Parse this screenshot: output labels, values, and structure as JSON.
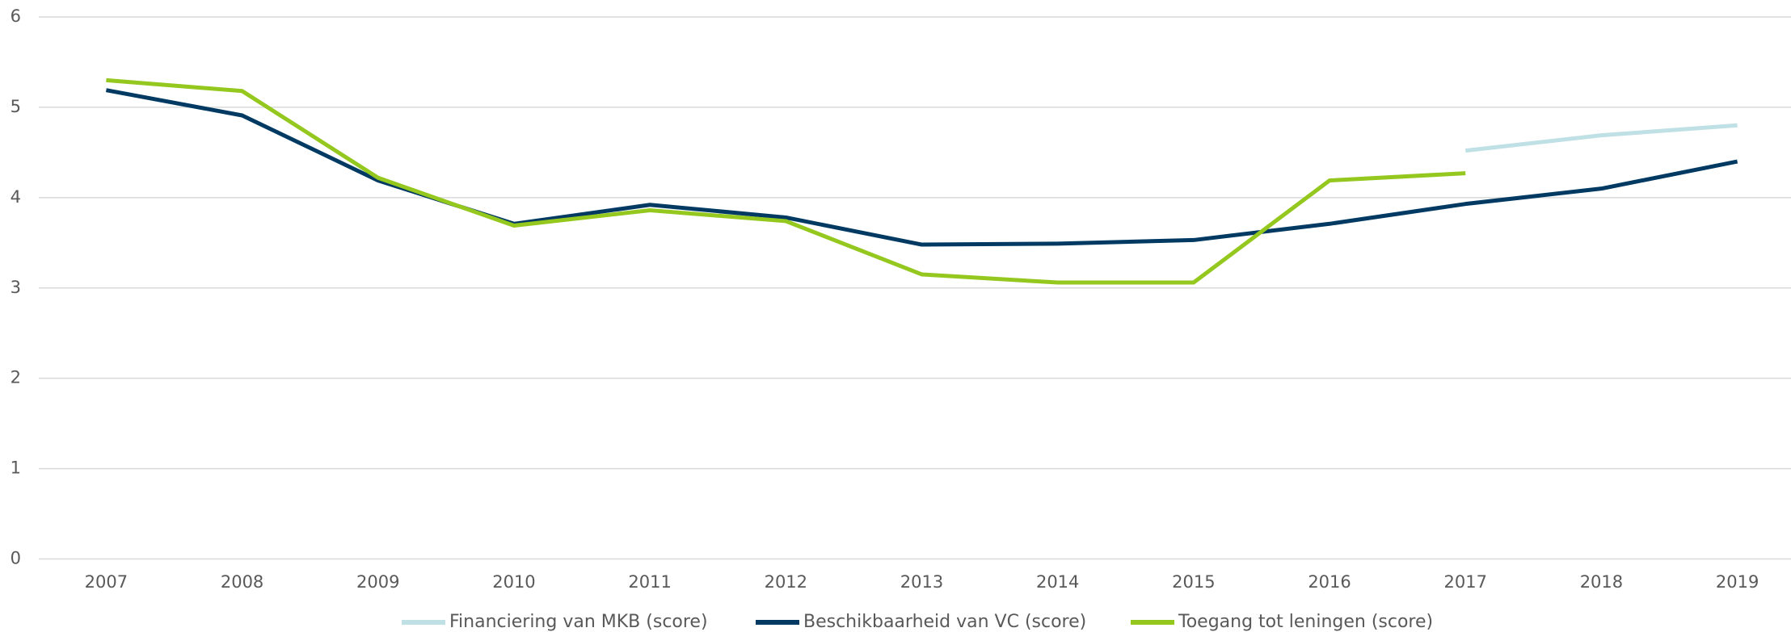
{
  "chart_data": {
    "type": "line",
    "categories": [
      "2007",
      "2008",
      "2009",
      "2010",
      "2011",
      "2012",
      "2013",
      "2014",
      "2015",
      "2016",
      "2017",
      "2018",
      "2019"
    ],
    "series": [
      {
        "name": "Financiering van MKB (score)",
        "color": "#bfe0e4",
        "values": [
          null,
          null,
          null,
          null,
          null,
          null,
          null,
          null,
          null,
          null,
          4.52,
          4.69,
          4.8
        ]
      },
      {
        "name": "Beschikbaarheid van VC (score)",
        "color": "#003a63",
        "values": [
          5.19,
          4.91,
          4.19,
          3.71,
          3.92,
          3.78,
          3.48,
          3.49,
          3.53,
          3.71,
          3.93,
          4.1,
          4.4
        ]
      },
      {
        "name": "Toegang tot leningen (score)",
        "color": "#94c81e",
        "values": [
          5.3,
          5.18,
          4.22,
          3.69,
          3.86,
          3.74,
          3.15,
          3.06,
          3.06,
          4.19,
          4.27,
          null,
          null
        ]
      }
    ],
    "ylim": [
      0,
      6
    ],
    "yticks": [
      0,
      1,
      2,
      3,
      4,
      5,
      6
    ],
    "grid": true,
    "legend": "bottom"
  }
}
